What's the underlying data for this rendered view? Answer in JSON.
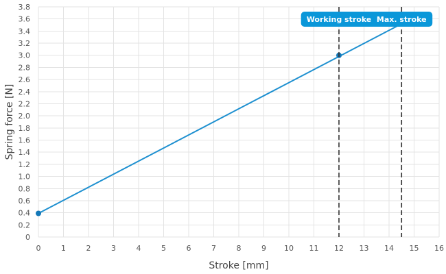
{
  "chart_data": {
    "type": "line",
    "xlabel": "Stroke [mm]",
    "ylabel": "Spring force [N]",
    "xlim": [
      0,
      16
    ],
    "ylim": [
      0,
      3.8
    ],
    "x_ticks": [
      0,
      1,
      2,
      3,
      4,
      5,
      6,
      7,
      8,
      9,
      10,
      11,
      12,
      13,
      14,
      15,
      16
    ],
    "y_ticks": [
      "0",
      "0.2",
      "0.4",
      "0.6",
      "0.8",
      "1.0",
      "1.2",
      "1.4",
      "1.6",
      "1.8",
      "2.0",
      "2.2",
      "2.4",
      "2.6",
      "2.8",
      "3.0",
      "3.2",
      "3.4",
      "3.6",
      "3.8"
    ],
    "grid": true,
    "series": [
      {
        "x": [
          0,
          14.5
        ],
        "y": [
          0.39,
          3.52
        ]
      }
    ],
    "points": [
      {
        "x": 0,
        "y": 0.39
      },
      {
        "x": 12,
        "y": 3.0
      }
    ],
    "markers": [
      {
        "label": "Working stroke",
        "x": 12
      },
      {
        "label": "Max. stroke",
        "x": 14.5
      }
    ],
    "colors": {
      "line": "#1e90d0",
      "point": "#1478b8",
      "label_bg": "#0a97d9",
      "marker_line": "#333333"
    }
  }
}
